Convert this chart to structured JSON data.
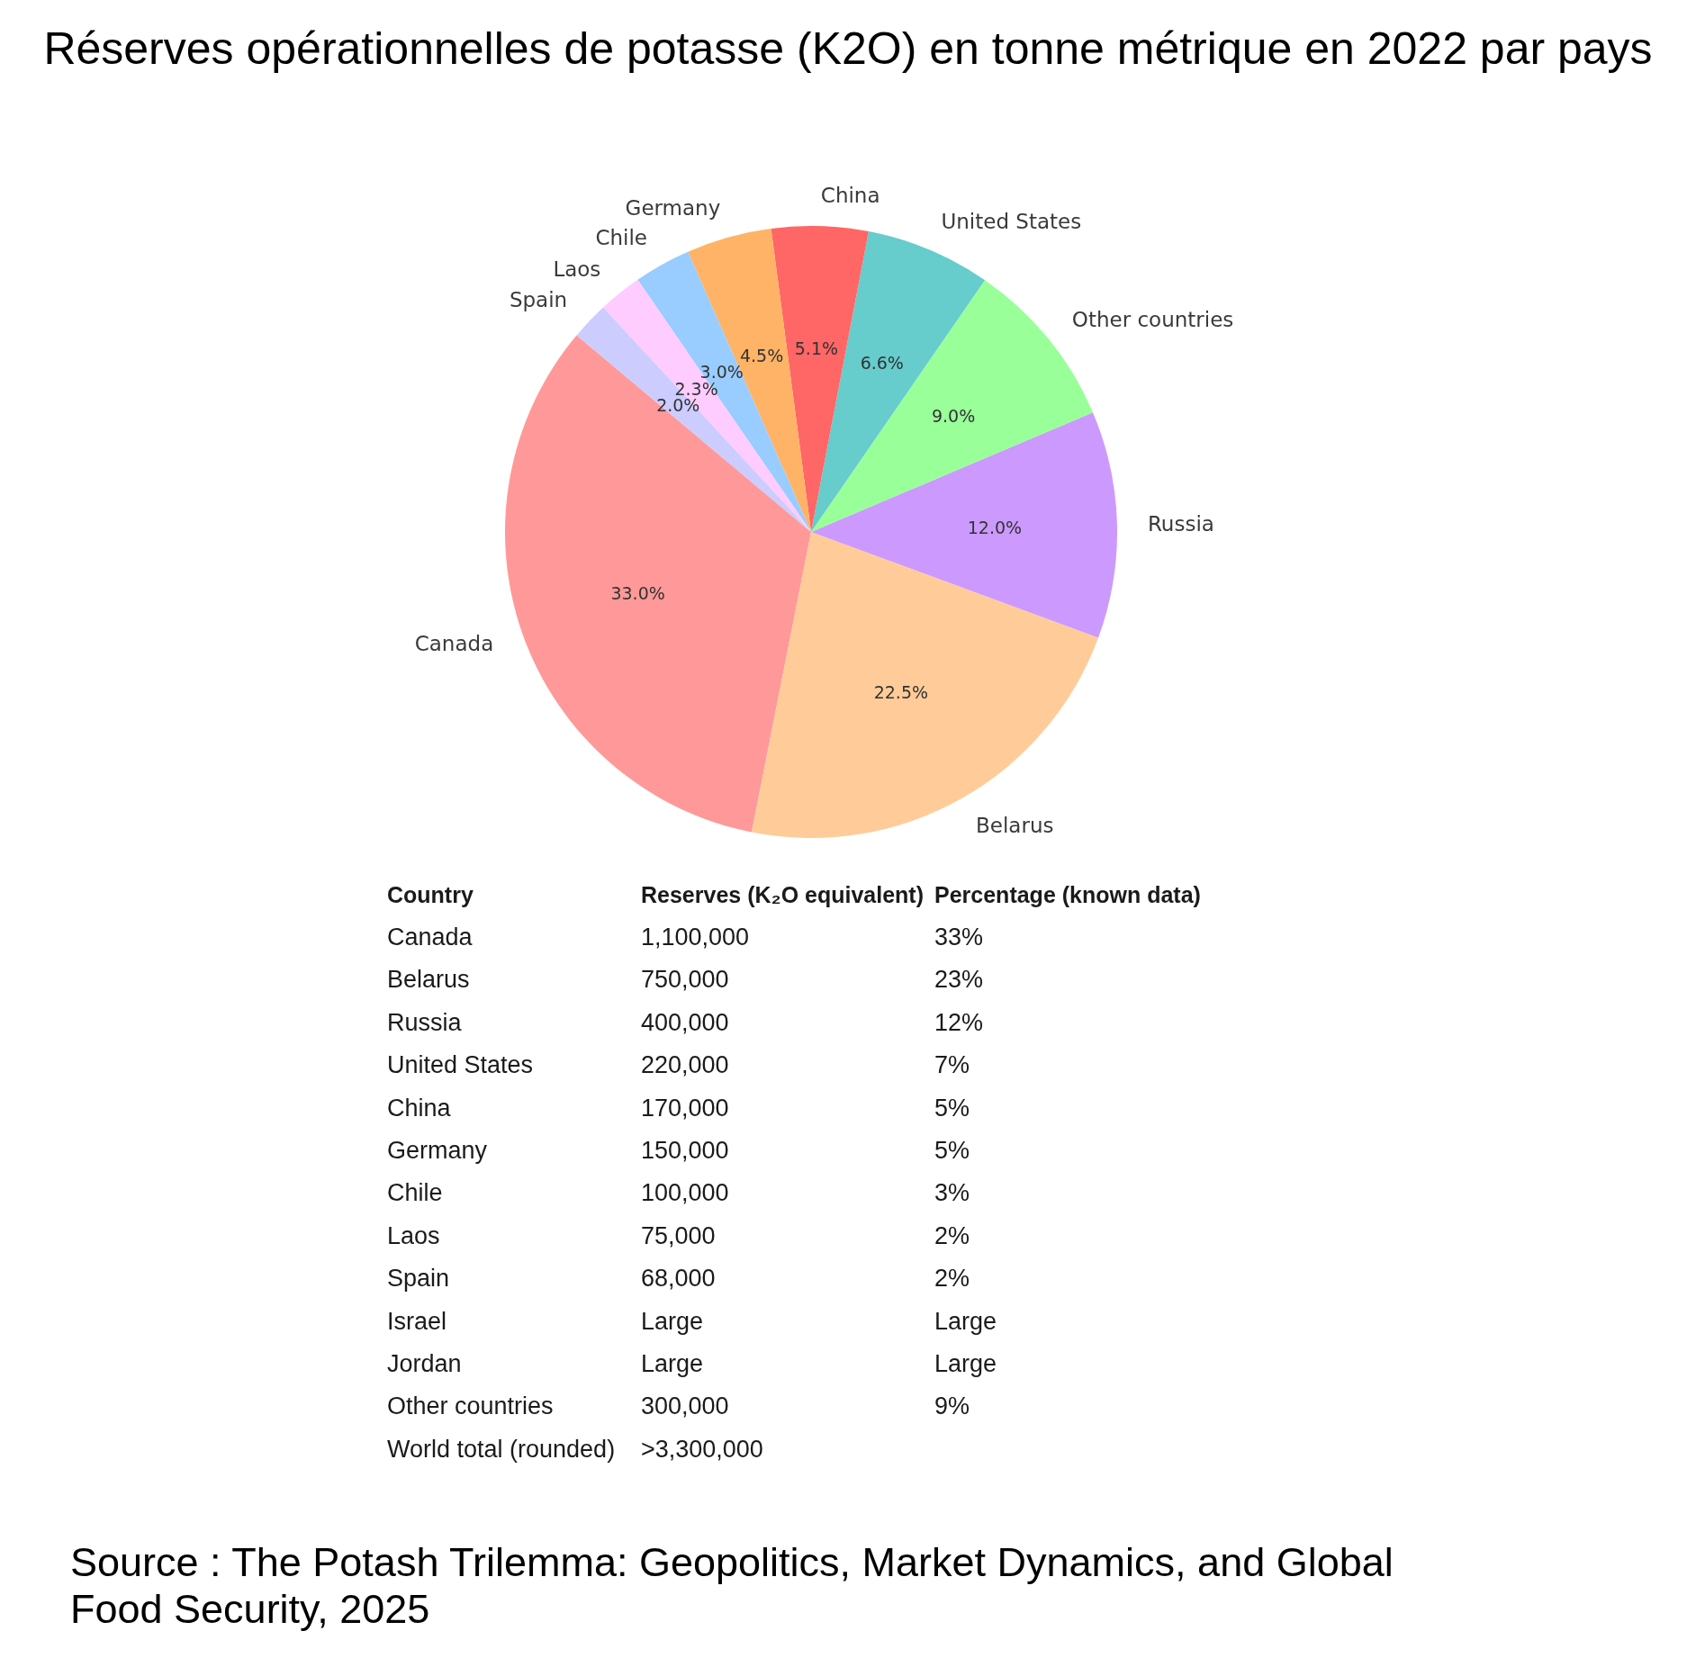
{
  "chart_data": [
    {
      "type": "pie",
      "title": "Réserves opérationnelles de potasse (K2O) en tonne métrique en 2022 par pays",
      "categories": [
        "Canada",
        "Belarus",
        "Russia",
        "Other countries",
        "United States",
        "China",
        "Germany",
        "Chile",
        "Laos",
        "Spain"
      ],
      "values": [
        33.0,
        22.5,
        12.0,
        9.0,
        6.6,
        5.1,
        4.5,
        3.0,
        2.3,
        2.0
      ],
      "colors": [
        "#ff9999",
        "#ffcc99",
        "#cc99ff",
        "#99ff99",
        "#66cccc",
        "#ff6666",
        "#ffb366",
        "#99ccff",
        "#ffccff",
        "#ccccff"
      ],
      "value_labels": [
        "33.0%",
        "22.5%",
        "12.0%",
        "9.0%",
        "6.6%",
        "5.1%",
        "4.5%",
        "3.0%",
        "2.3%",
        "2.0%"
      ]
    },
    {
      "type": "other",
      "xlabel": "Country",
      "categories": [
        "Canada",
        "Belarus",
        "Russia",
        "United States",
        "China",
        "Germany",
        "Chile",
        "Laos",
        "Spain",
        "Israel",
        "Jordan",
        "Other countries",
        "World total (rounded)"
      ],
      "series": [
        {
          "name": "Reserves (K₂O equivalent)",
          "values": [
            null,
            null,
            null,
            null,
            null,
            null,
            null,
            null,
            null,
            null,
            null,
            null,
            null
          ],
          "value_labels": [
            "1,100,000",
            "750,000",
            "400,000",
            "220,000",
            "170,000",
            "150,000",
            "100,000",
            "75,000",
            "68,000",
            "Large",
            "Large",
            "300,000",
            ">3,300,000"
          ]
        },
        {
          "name": "Percentage (known data)",
          "values": [
            null,
            null,
            null,
            null,
            null,
            null,
            null,
            null,
            null,
            null,
            null,
            null,
            null
          ],
          "value_labels": [
            "33%",
            "23%",
            "12%",
            "7%",
            "5%",
            "5%",
            "3%",
            "2%",
            "2%",
            "Large",
            "Large",
            "9%",
            null
          ]
        }
      ],
      "annotations": [
        "Source : The Potash Trilemma: Geopolitics, Market Dynamics, and Global Food Security, 2025"
      ]
    }
  ]
}
